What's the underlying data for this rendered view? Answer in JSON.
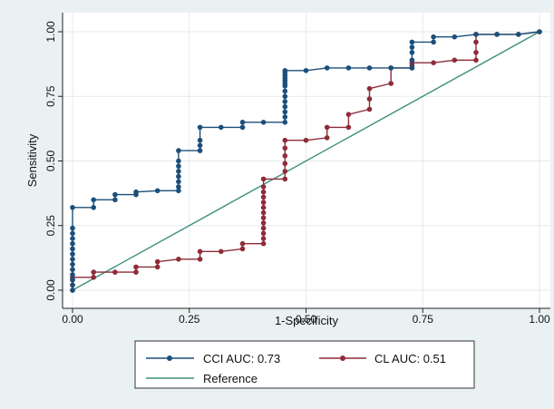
{
  "colors": {
    "background": "#eaf1f3",
    "plot_background": "#ffffff",
    "grid": "#e3eaec",
    "cci": "#1b4f7a",
    "cl": "#8e2c39",
    "reference": "#3d8f7c"
  },
  "chart_data": {
    "type": "line",
    "title": "",
    "xlabel": "1-Specificity",
    "ylabel": "Sensitivity",
    "xlim": [
      0,
      1
    ],
    "ylim": [
      0,
      1
    ],
    "xticks": [
      "0.00",
      "0.25",
      "0.50",
      "0.75",
      "1.00"
    ],
    "yticks": [
      "0.00",
      "0.25",
      "0.50",
      "0.75",
      "1.00"
    ],
    "grid": true,
    "legend_position": "bottom",
    "series": [
      {
        "name": "CCI AUC: 0.73",
        "color": "#1b4f7a",
        "marker": "circle",
        "x": [
          0,
          0,
          0,
          0,
          0,
          0,
          0,
          0,
          0,
          0,
          0,
          0,
          0,
          0,
          0.045,
          0.045,
          0.091,
          0.091,
          0.136,
          0.136,
          0.182,
          0.227,
          0.227,
          0.227,
          0.227,
          0.227,
          0.227,
          0.227,
          0.227,
          0.273,
          0.273,
          0.273,
          0.273,
          0.318,
          0.364,
          0.364,
          0.409,
          0.455,
          0.455,
          0.455,
          0.455,
          0.455,
          0.455,
          0.455,
          0.455,
          0.455,
          0.455,
          0.455,
          0.455,
          0.455,
          0.455,
          0.5,
          0.545,
          0.591,
          0.636,
          0.682,
          0.727,
          0.727,
          0.727,
          0.727,
          0.727,
          0.773,
          0.773,
          0.818,
          0.864,
          0.909,
          0.955,
          1.0
        ],
        "y": [
          0,
          0.02,
          0.04,
          0.06,
          0.08,
          0.1,
          0.12,
          0.14,
          0.16,
          0.18,
          0.2,
          0.22,
          0.24,
          0.32,
          0.32,
          0.35,
          0.35,
          0.37,
          0.37,
          0.38,
          0.385,
          0.385,
          0.4,
          0.42,
          0.44,
          0.46,
          0.48,
          0.5,
          0.54,
          0.54,
          0.56,
          0.58,
          0.63,
          0.63,
          0.63,
          0.65,
          0.65,
          0.65,
          0.67,
          0.69,
          0.71,
          0.73,
          0.75,
          0.77,
          0.79,
          0.8,
          0.81,
          0.82,
          0.83,
          0.84,
          0.85,
          0.85,
          0.86,
          0.86,
          0.86,
          0.86,
          0.86,
          0.89,
          0.92,
          0.94,
          0.96,
          0.96,
          0.98,
          0.98,
          0.99,
          0.99,
          0.99,
          1.0
        ]
      },
      {
        "name": "CL AUC: 0.51",
        "color": "#8e2c39",
        "marker": "circle",
        "x": [
          0,
          0,
          0,
          0,
          0.045,
          0.045,
          0.091,
          0.136,
          0.136,
          0.182,
          0.182,
          0.227,
          0.273,
          0.273,
          0.318,
          0.364,
          0.364,
          0.409,
          0.409,
          0.409,
          0.409,
          0.409,
          0.409,
          0.409,
          0.409,
          0.409,
          0.409,
          0.409,
          0.409,
          0.409,
          0.455,
          0.455,
          0.455,
          0.455,
          0.455,
          0.455,
          0.5,
          0.545,
          0.545,
          0.591,
          0.591,
          0.636,
          0.636,
          0.636,
          0.682,
          0.682,
          0.727,
          0.727,
          0.727,
          0.773,
          0.818,
          0.864,
          0.864,
          0.864,
          0.864,
          0.909,
          0.955,
          1.0
        ],
        "y": [
          0,
          0.02,
          0.04,
          0.05,
          0.05,
          0.07,
          0.07,
          0.07,
          0.09,
          0.09,
          0.11,
          0.12,
          0.12,
          0.15,
          0.15,
          0.16,
          0.18,
          0.18,
          0.2,
          0.22,
          0.24,
          0.26,
          0.28,
          0.3,
          0.32,
          0.34,
          0.36,
          0.38,
          0.4,
          0.43,
          0.43,
          0.46,
          0.49,
          0.52,
          0.55,
          0.58,
          0.58,
          0.59,
          0.63,
          0.63,
          0.68,
          0.7,
          0.74,
          0.78,
          0.8,
          0.86,
          0.86,
          0.87,
          0.88,
          0.88,
          0.89,
          0.89,
          0.92,
          0.96,
          0.99,
          0.99,
          0.99,
          1.0
        ]
      },
      {
        "name": "Reference",
        "color": "#3d8f7c",
        "marker": "none",
        "x": [
          0,
          1
        ],
        "y": [
          0,
          1
        ]
      }
    ]
  }
}
